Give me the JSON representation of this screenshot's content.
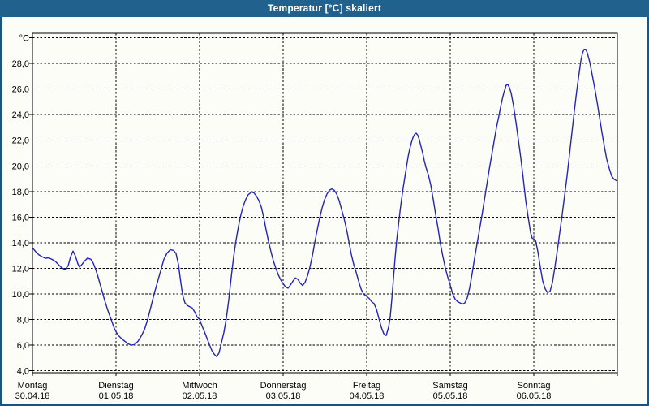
{
  "window": {
    "title": "Temperatur [°C] skaliert"
  },
  "colors": {
    "titlebar_bg": "#21618e",
    "frame": "#1a5480",
    "chart_bg": "#fcfdf7",
    "grid": "#000000",
    "axis": "#000000",
    "text": "#000000",
    "line": "#2323bb"
  },
  "chart_data": {
    "type": "line",
    "title": "Temperatur [°C] skaliert",
    "legend": "none",
    "grid": {
      "horizontal_dashed": true,
      "vertical_dashed": true
    },
    "y_axis": {
      "unit_label": "°C",
      "min": 3.85,
      "max": 30.35,
      "grid_min": 4,
      "grid_max": 30,
      "grid_step": 2,
      "ticks": [
        [
          28,
          "28,0"
        ],
        [
          26,
          "26,0"
        ],
        [
          24,
          "24,0"
        ],
        [
          22,
          "22,0"
        ],
        [
          20,
          "20,0"
        ],
        [
          18,
          "18,0"
        ],
        [
          16,
          "16,0"
        ],
        [
          14,
          "14,0"
        ],
        [
          12,
          "12,0"
        ],
        [
          10,
          "10,0"
        ],
        [
          8,
          "8,0"
        ],
        [
          6,
          "6,0"
        ],
        [
          4,
          "4,0"
        ]
      ]
    },
    "x_axis": {
      "range_days": [
        0,
        7
      ],
      "day_labels": [
        {
          "name": "Montag",
          "date": "30.04.18"
        },
        {
          "name": "Dienstag",
          "date": "01.05.18"
        },
        {
          "name": "Mittwoch",
          "date": "02.05.18"
        },
        {
          "name": "Donnerstag",
          "date": "03.05.18"
        },
        {
          "name": "Freitag",
          "date": "04.05.18"
        },
        {
          "name": "Samstag",
          "date": "05.05.18"
        },
        {
          "name": "Sonntag",
          "date": "06.05.18"
        }
      ]
    },
    "series": [
      {
        "name": "Temperatur",
        "color": "#2323bb",
        "points": [
          [
            0,
            13.6
          ],
          [
            0.039,
            13.3
          ],
          [
            0.078,
            13.05
          ],
          [
            0.117,
            12.9
          ],
          [
            0.155,
            12.78
          ],
          [
            0.194,
            12.82
          ],
          [
            0.233,
            12.7
          ],
          [
            0.272,
            12.55
          ],
          [
            0.311,
            12.3
          ],
          [
            0.35,
            12.05
          ],
          [
            0.388,
            11.9
          ],
          [
            0.427,
            12.2
          ],
          [
            0.456,
            12.9
          ],
          [
            0.485,
            13.35
          ],
          [
            0.515,
            12.95
          ],
          [
            0.544,
            12.35
          ],
          [
            0.563,
            12.1
          ],
          [
            0.592,
            12.3
          ],
          [
            0.621,
            12.55
          ],
          [
            0.66,
            12.8
          ],
          [
            0.699,
            12.7
          ],
          [
            0.728,
            12.4
          ],
          [
            0.757,
            11.9
          ],
          [
            0.786,
            11.3
          ],
          [
            0.825,
            10.4
          ],
          [
            0.864,
            9.5
          ],
          [
            0.903,
            8.7
          ],
          [
            0.942,
            8.0
          ],
          [
            0.981,
            7.3
          ],
          [
            1.0,
            7.05
          ],
          [
            1.029,
            6.75
          ],
          [
            1.068,
            6.5
          ],
          [
            1.107,
            6.3
          ],
          [
            1.146,
            6.1
          ],
          [
            1.184,
            6.0
          ],
          [
            1.223,
            6.05
          ],
          [
            1.262,
            6.3
          ],
          [
            1.301,
            6.7
          ],
          [
            1.34,
            7.2
          ],
          [
            1.379,
            8.0
          ],
          [
            1.417,
            9.0
          ],
          [
            1.456,
            10.0
          ],
          [
            1.495,
            10.9
          ],
          [
            1.534,
            11.8
          ],
          [
            1.573,
            12.7
          ],
          [
            1.612,
            13.2
          ],
          [
            1.65,
            13.45
          ],
          [
            1.689,
            13.4
          ],
          [
            1.718,
            13.15
          ],
          [
            1.748,
            12.3
          ],
          [
            1.767,
            11.3
          ],
          [
            1.786,
            10.4
          ],
          [
            1.806,
            9.7
          ],
          [
            1.825,
            9.3
          ],
          [
            1.854,
            9.1
          ],
          [
            1.883,
            9.0
          ],
          [
            1.913,
            8.9
          ],
          [
            1.942,
            8.6
          ],
          [
            1.971,
            8.2
          ],
          [
            2.0,
            8.0
          ],
          [
            2.029,
            7.5
          ],
          [
            2.058,
            7.05
          ],
          [
            2.087,
            6.55
          ],
          [
            2.117,
            6.05
          ],
          [
            2.146,
            5.6
          ],
          [
            2.175,
            5.3
          ],
          [
            2.204,
            5.1
          ],
          [
            2.233,
            5.4
          ],
          [
            2.262,
            6.2
          ],
          [
            2.291,
            7.0
          ],
          [
            2.32,
            8.1
          ],
          [
            2.35,
            9.6
          ],
          [
            2.379,
            11.3
          ],
          [
            2.408,
            12.9
          ],
          [
            2.437,
            14.2
          ],
          [
            2.466,
            15.3
          ],
          [
            2.495,
            16.2
          ],
          [
            2.524,
            16.9
          ],
          [
            2.553,
            17.4
          ],
          [
            2.583,
            17.75
          ],
          [
            2.621,
            17.95
          ],
          [
            2.65,
            17.9
          ],
          [
            2.68,
            17.65
          ],
          [
            2.709,
            17.3
          ],
          [
            2.738,
            16.8
          ],
          [
            2.767,
            16.0
          ],
          [
            2.796,
            15.0
          ],
          [
            2.825,
            14.1
          ],
          [
            2.854,
            13.3
          ],
          [
            2.883,
            12.6
          ],
          [
            2.913,
            12.0
          ],
          [
            2.942,
            11.5
          ],
          [
            2.971,
            11.1
          ],
          [
            3.0,
            10.8
          ],
          [
            3.029,
            10.55
          ],
          [
            3.058,
            10.45
          ],
          [
            3.087,
            10.7
          ],
          [
            3.117,
            11.0
          ],
          [
            3.146,
            11.25
          ],
          [
            3.175,
            11.15
          ],
          [
            3.204,
            10.85
          ],
          [
            3.233,
            10.65
          ],
          [
            3.262,
            10.9
          ],
          [
            3.291,
            11.4
          ],
          [
            3.32,
            12.1
          ],
          [
            3.35,
            13.0
          ],
          [
            3.379,
            14.0
          ],
          [
            3.408,
            15.0
          ],
          [
            3.437,
            15.9
          ],
          [
            3.466,
            16.7
          ],
          [
            3.495,
            17.35
          ],
          [
            3.524,
            17.8
          ],
          [
            3.553,
            18.1
          ],
          [
            3.583,
            18.2
          ],
          [
            3.612,
            18.1
          ],
          [
            3.641,
            17.8
          ],
          [
            3.67,
            17.3
          ],
          [
            3.699,
            16.6
          ],
          [
            3.728,
            15.9
          ],
          [
            3.757,
            15.1
          ],
          [
            3.786,
            14.1
          ],
          [
            3.816,
            13.1
          ],
          [
            3.845,
            12.3
          ],
          [
            3.874,
            11.7
          ],
          [
            3.903,
            11.0
          ],
          [
            3.932,
            10.4
          ],
          [
            3.961,
            10.0
          ],
          [
            4.0,
            9.8
          ],
          [
            4.029,
            9.65
          ],
          [
            4.058,
            9.4
          ],
          [
            4.087,
            9.25
          ],
          [
            4.117,
            8.8
          ],
          [
            4.146,
            8.1
          ],
          [
            4.175,
            7.4
          ],
          [
            4.204,
            6.9
          ],
          [
            4.233,
            6.75
          ],
          [
            4.262,
            7.4
          ],
          [
            4.282,
            8.2
          ],
          [
            4.301,
            9.6
          ],
          [
            4.32,
            11.2
          ],
          [
            4.34,
            12.8
          ],
          [
            4.359,
            14.2
          ],
          [
            4.379,
            15.3
          ],
          [
            4.398,
            16.4
          ],
          [
            4.417,
            17.4
          ],
          [
            4.437,
            18.3
          ],
          [
            4.456,
            19.1
          ],
          [
            4.476,
            19.9
          ],
          [
            4.495,
            20.7
          ],
          [
            4.515,
            21.3
          ],
          [
            4.534,
            21.8
          ],
          [
            4.553,
            22.2
          ],
          [
            4.573,
            22.45
          ],
          [
            4.592,
            22.55
          ],
          [
            4.612,
            22.4
          ],
          [
            4.631,
            22.0
          ],
          [
            4.65,
            21.5
          ],
          [
            4.67,
            21.0
          ],
          [
            4.689,
            20.4
          ],
          [
            4.709,
            19.9
          ],
          [
            4.738,
            19.3
          ],
          [
            4.767,
            18.5
          ],
          [
            4.796,
            17.4
          ],
          [
            4.825,
            16.2
          ],
          [
            4.854,
            15.1
          ],
          [
            4.883,
            13.9
          ],
          [
            4.913,
            12.9
          ],
          [
            4.942,
            12.0
          ],
          [
            4.971,
            11.3
          ],
          [
            5.0,
            10.7
          ],
          [
            5.029,
            10.0
          ],
          [
            5.058,
            9.6
          ],
          [
            5.087,
            9.4
          ],
          [
            5.117,
            9.3
          ],
          [
            5.146,
            9.2
          ],
          [
            5.175,
            9.3
          ],
          [
            5.204,
            9.7
          ],
          [
            5.233,
            10.5
          ],
          [
            5.262,
            11.6
          ],
          [
            5.291,
            12.8
          ],
          [
            5.32,
            13.9
          ],
          [
            5.35,
            15.0
          ],
          [
            5.379,
            16.1
          ],
          [
            5.408,
            17.3
          ],
          [
            5.437,
            18.5
          ],
          [
            5.466,
            19.7
          ],
          [
            5.495,
            20.8
          ],
          [
            5.524,
            21.9
          ],
          [
            5.553,
            23.0
          ],
          [
            5.583,
            23.9
          ],
          [
            5.612,
            24.9
          ],
          [
            5.641,
            25.7
          ],
          [
            5.67,
            26.3
          ],
          [
            5.689,
            26.35
          ],
          [
            5.709,
            26.1
          ],
          [
            5.728,
            25.7
          ],
          [
            5.757,
            24.7
          ],
          [
            5.786,
            23.4
          ],
          [
            5.816,
            22.0
          ],
          [
            5.845,
            20.6
          ],
          [
            5.874,
            19.0
          ],
          [
            5.903,
            17.3
          ],
          [
            5.932,
            16.0
          ],
          [
            5.961,
            14.8
          ],
          [
            5.981,
            14.35
          ],
          [
            6.0,
            14.3
          ],
          [
            6.019,
            14.2
          ],
          [
            6.049,
            13.3
          ],
          [
            6.078,
            12.1
          ],
          [
            6.107,
            11.0
          ],
          [
            6.136,
            10.4
          ],
          [
            6.165,
            10.1
          ],
          [
            6.194,
            10.2
          ],
          [
            6.223,
            10.9
          ],
          [
            6.252,
            12.1
          ],
          [
            6.282,
            13.4
          ],
          [
            6.311,
            14.8
          ],
          [
            6.34,
            16.2
          ],
          [
            6.369,
            17.7
          ],
          [
            6.398,
            19.2
          ],
          [
            6.427,
            20.9
          ],
          [
            6.456,
            22.6
          ],
          [
            6.485,
            24.3
          ],
          [
            6.515,
            25.9
          ],
          [
            6.544,
            27.3
          ],
          [
            6.563,
            28.2
          ],
          [
            6.583,
            28.8
          ],
          [
            6.602,
            29.1
          ],
          [
            6.621,
            29.1
          ],
          [
            6.641,
            28.8
          ],
          [
            6.67,
            28.1
          ],
          [
            6.699,
            27.1
          ],
          [
            6.728,
            26.1
          ],
          [
            6.757,
            25.0
          ],
          [
            6.786,
            23.8
          ],
          [
            6.816,
            22.6
          ],
          [
            6.845,
            21.5
          ],
          [
            6.874,
            20.5
          ],
          [
            6.903,
            19.8
          ],
          [
            6.932,
            19.2
          ],
          [
            6.961,
            18.95
          ],
          [
            7.0,
            18.8
          ]
        ]
      }
    ]
  }
}
